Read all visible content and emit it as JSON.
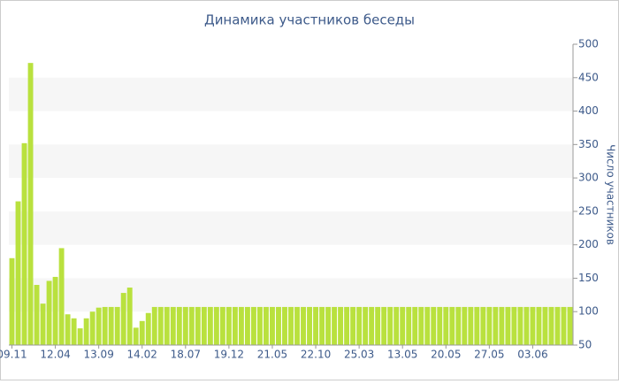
{
  "chart_data": {
    "type": "bar",
    "title": "Динамика участников беседы",
    "y_label": "Число участников",
    "categories": [
      "09.11",
      null,
      null,
      null,
      null,
      null,
      null,
      "12.04",
      null,
      null,
      null,
      null,
      null,
      null,
      "13.09",
      null,
      null,
      null,
      null,
      null,
      null,
      "14.02",
      null,
      null,
      null,
      null,
      null,
      null,
      "18.07",
      null,
      null,
      null,
      null,
      null,
      null,
      "19.12",
      null,
      null,
      null,
      null,
      null,
      null,
      "21.05",
      null,
      null,
      null,
      null,
      null,
      null,
      "22.10",
      null,
      null,
      null,
      null,
      null,
      null,
      "25.03",
      null,
      null,
      null,
      null,
      null,
      null,
      "13.05",
      null,
      null,
      null,
      null,
      null,
      null,
      "20.05",
      null,
      null,
      null,
      null,
      null,
      null,
      "27.05",
      null,
      null,
      null,
      null,
      null,
      null,
      "03.06",
      null,
      null,
      null,
      null,
      null,
      null
    ],
    "values": [
      180,
      265,
      352,
      472,
      140,
      112,
      146,
      152,
      195,
      96,
      90,
      75,
      90,
      100,
      106,
      107,
      107,
      107,
      128,
      136,
      76,
      86,
      98,
      107,
      107,
      107,
      107,
      107,
      107,
      107,
      107,
      107,
      107,
      107,
      107,
      107,
      107,
      107,
      107,
      107,
      107,
      107,
      107,
      107,
      107,
      107,
      107,
      107,
      107,
      107,
      107,
      107,
      107,
      107,
      107,
      107,
      107,
      107,
      107,
      107,
      107,
      107,
      107,
      107,
      107,
      107,
      107,
      107,
      107,
      107,
      107,
      107,
      107,
      107,
      107,
      107,
      107,
      107,
      107,
      107,
      107,
      107,
      107,
      107,
      107,
      107,
      107,
      107,
      107,
      107,
      107
    ],
    "color": "#b9e13e",
    "ylim": [
      50,
      500
    ],
    "yticks": [
      50,
      100,
      150,
      200,
      250,
      300,
      350,
      400,
      450,
      500
    ],
    "grid": true
  }
}
